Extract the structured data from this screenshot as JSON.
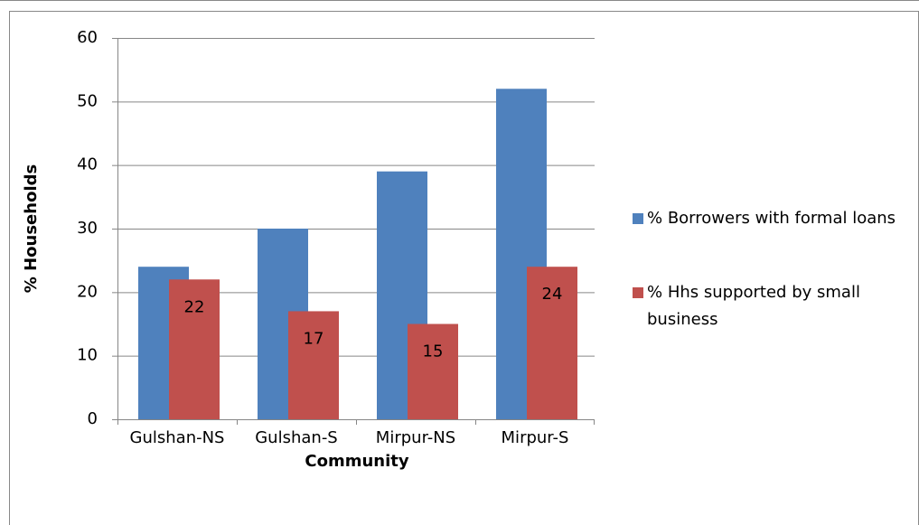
{
  "chart_data": {
    "type": "bar",
    "xlabel": "Community",
    "ylabel": "% Households",
    "categories": [
      "Gulshan-NS",
      "Gulshan-S",
      "Mirpur-NS",
      "Mirpur-S"
    ],
    "series": [
      {
        "name": "% Borrowers with formal loans",
        "color": "#4f81bd",
        "values": [
          24,
          30,
          39,
          52
        ],
        "show_labels": false
      },
      {
        "name": "% Hhs supported by small business",
        "color": "#c0504d",
        "values": [
          22,
          17,
          15,
          24
        ],
        "show_labels": true
      }
    ],
    "ylim": [
      0,
      60
    ],
    "yticks": [
      0,
      10,
      20,
      30,
      40,
      50,
      60
    ],
    "grid": true,
    "legend": "right"
  }
}
